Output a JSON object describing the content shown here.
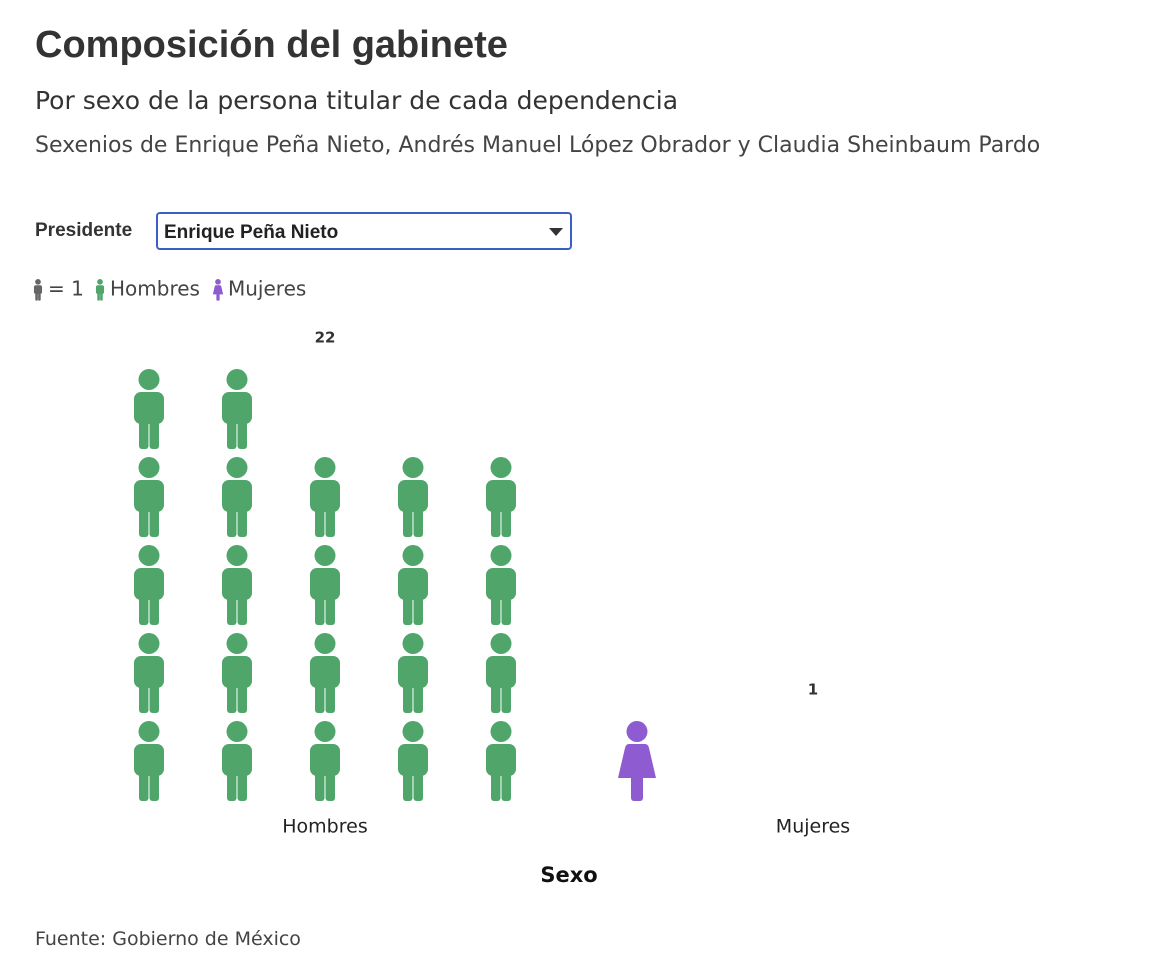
{
  "chart_data": {
    "type": "pictogram",
    "title": "Composición del gabinete",
    "subtitle": "Por sexo de la persona titular de cada dependencia",
    "description": "Sexenios de Enrique Peña Nieto, Andrés Manuel López Obrador y Claudia Sheinbaum Pardo",
    "filter": {
      "label": "Presidente",
      "selected": "Enrique Peña Nieto"
    },
    "unit": {
      "value": 1,
      "label": "= 1",
      "color": "#666666"
    },
    "categories": [
      "Hombres",
      "Mujeres"
    ],
    "values": [
      22,
      1
    ],
    "colors": [
      "#4fa56a",
      "#8e5bd0"
    ],
    "icon_shapes": [
      "male",
      "female"
    ],
    "xlabel": "Sexo",
    "source": "Fuente: Gobierno de México"
  }
}
